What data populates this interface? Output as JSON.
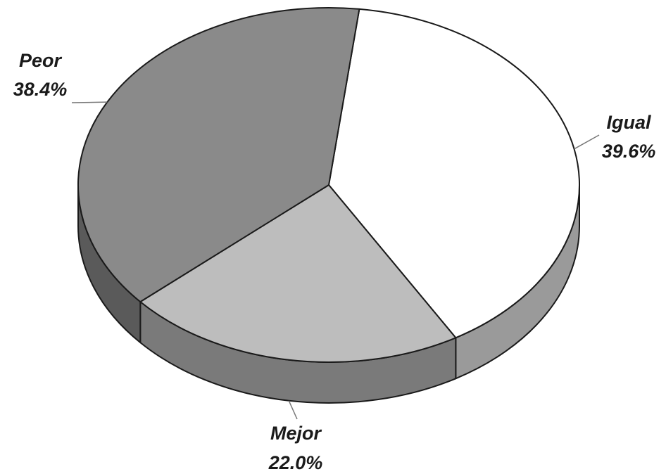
{
  "chart_data": {
    "type": "pie",
    "title": "",
    "slices": [
      {
        "label": "Igual",
        "value": 39.6,
        "value_label": "39.6%",
        "color": "#ffffff",
        "side_color": "#9a9a9a"
      },
      {
        "label": "Mejor",
        "value": 22.0,
        "value_label": "22.0%",
        "color": "#bdbdbd",
        "side_color": "#7a7a7a"
      },
      {
        "label": "Peor",
        "value": 38.4,
        "value_label": "38.4%",
        "color": "#8a8a8a",
        "side_color": "#5a5a5a"
      }
    ],
    "style": "3d",
    "legend": "none",
    "border_color": "#1a1a1a"
  }
}
